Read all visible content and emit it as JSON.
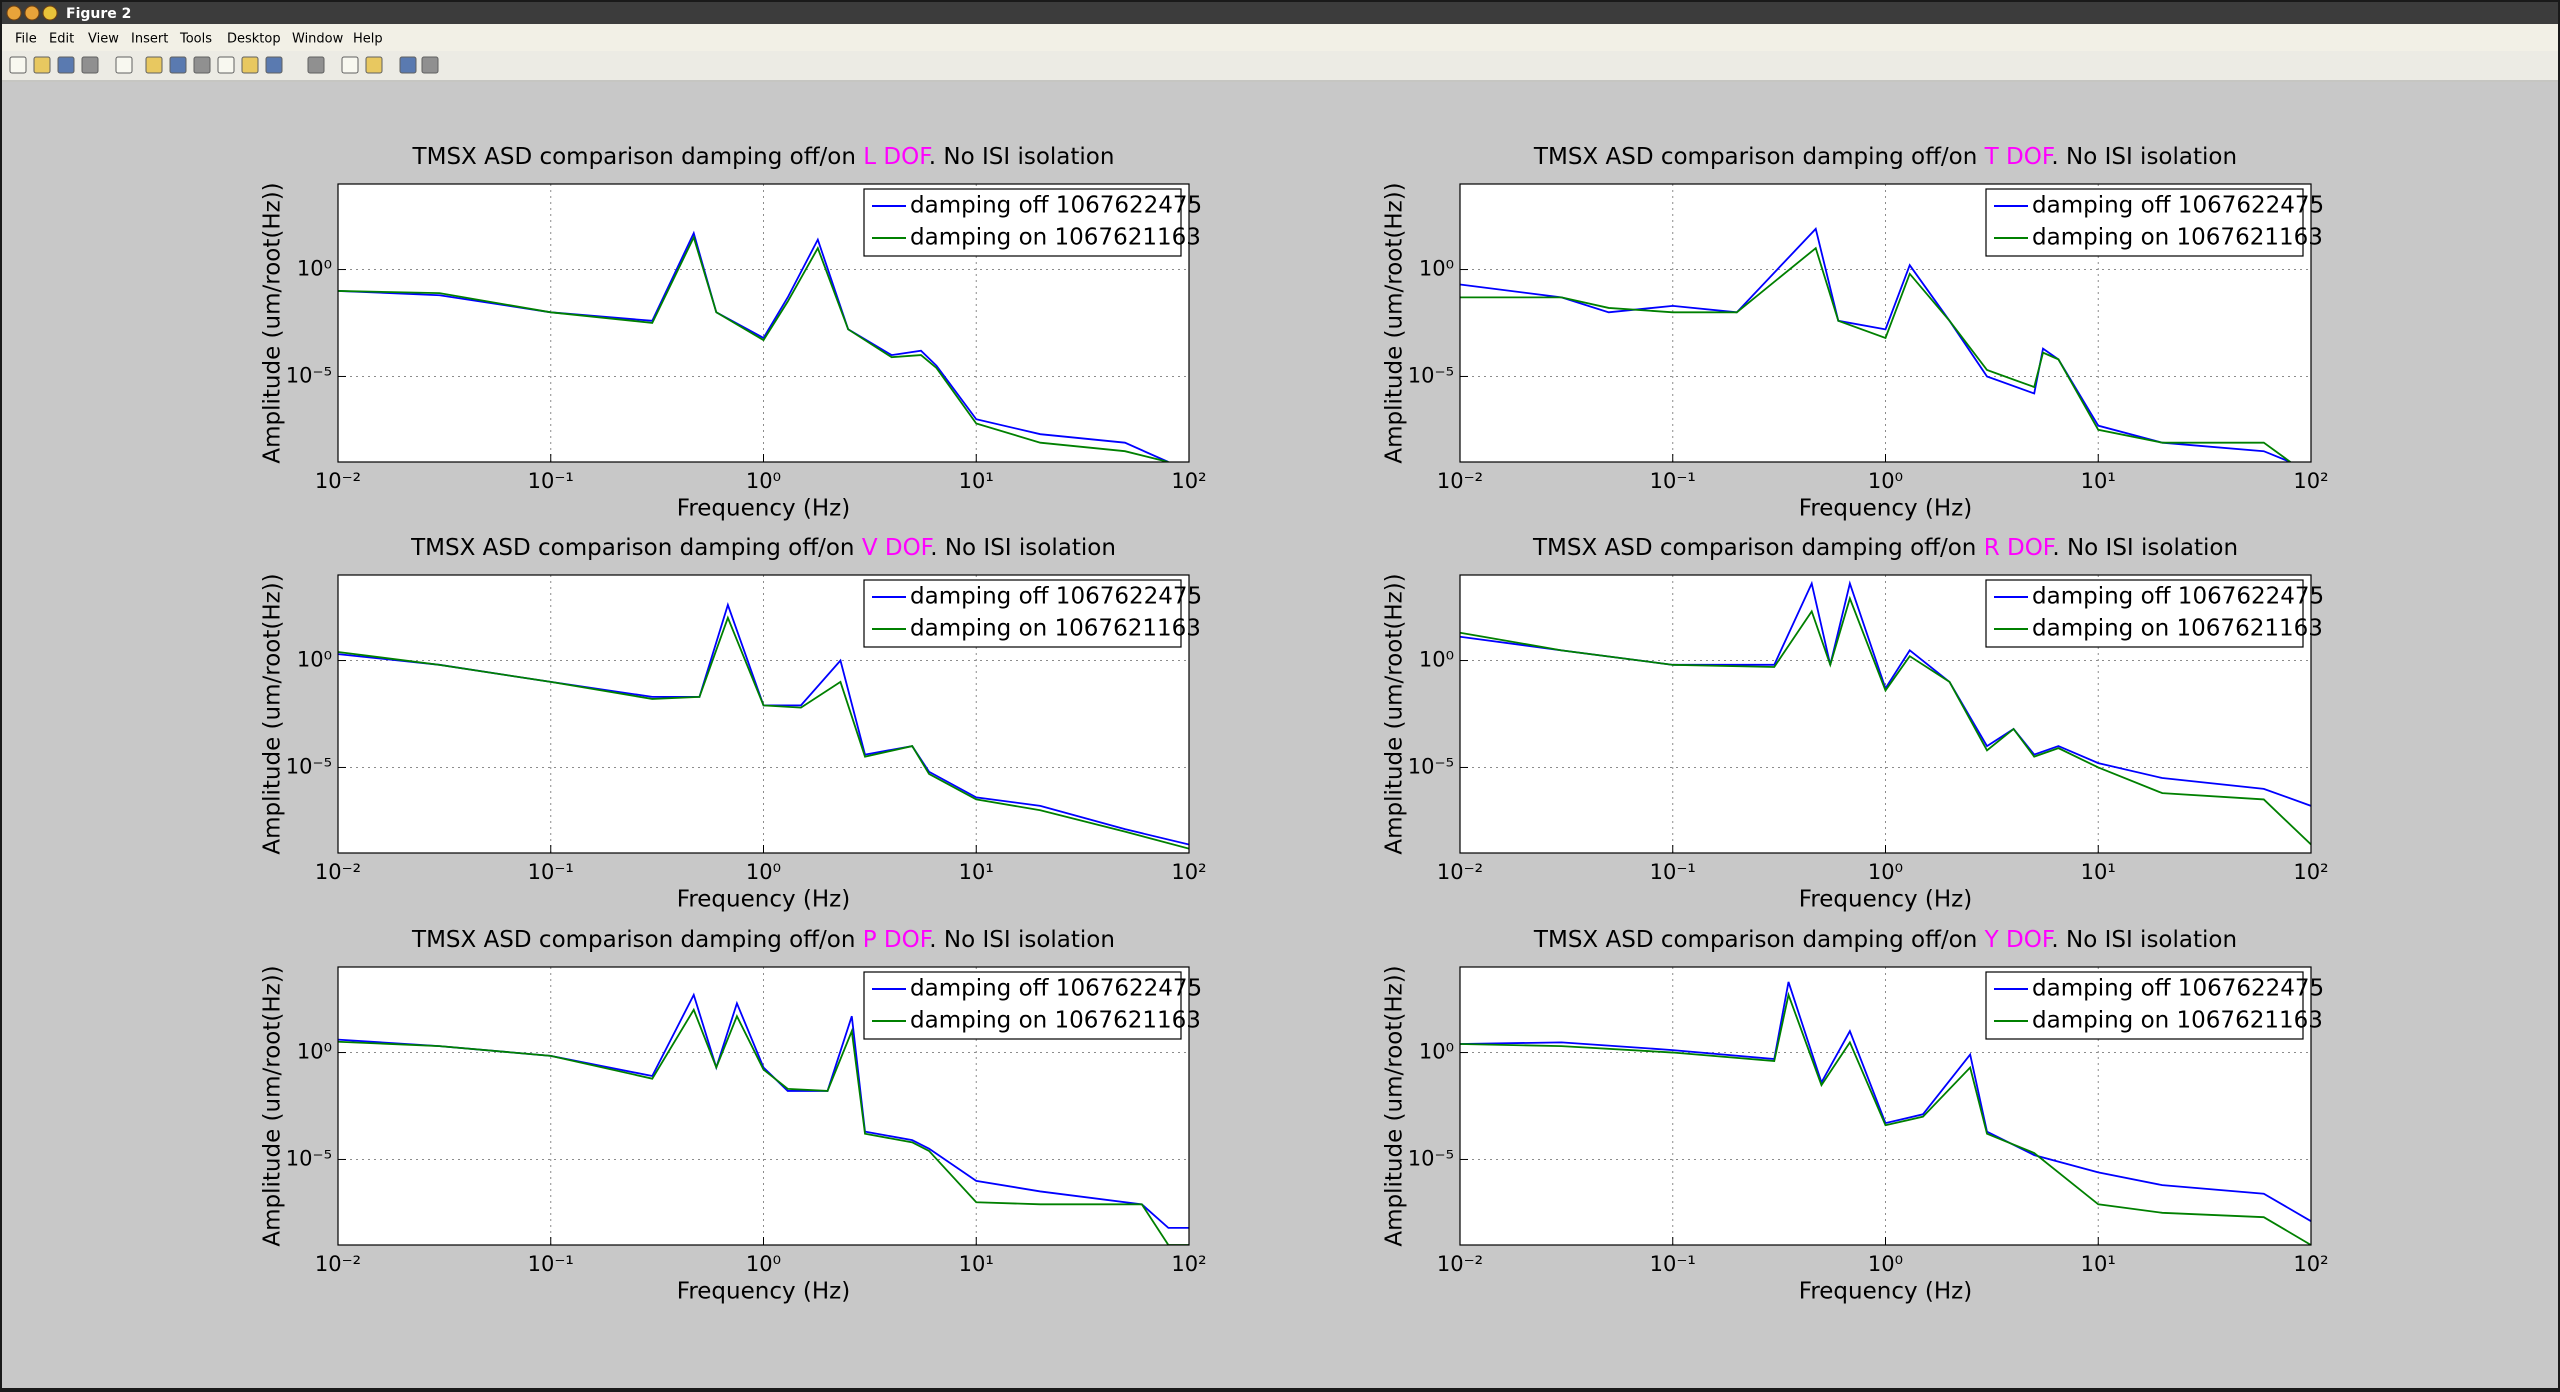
{
  "window": {
    "title": "Figure 2"
  },
  "menu": [
    "File",
    "Edit",
    "View",
    "Insert",
    "Tools",
    "Desktop",
    "Window",
    "Help"
  ],
  "chart_data": [
    {
      "type": "line",
      "xscale": "log",
      "yscale": "log",
      "grid": true,
      "legend": "northeast",
      "title": [
        {
          "text": "TMSX ASD comparison damping off/on ",
          "color": "#000000"
        },
        {
          "text": "L DOF",
          "color": "#ff00ff"
        },
        {
          "text": ". No ISI isolation",
          "color": "#000000"
        }
      ],
      "xlabel": "Frequency (Hz)",
      "ylabel": "Amplitude (um/root(Hz))",
      "xlim": [
        0.01,
        100
      ],
      "ylim": [
        1e-09,
        10000
      ],
      "xticks": [
        {
          "value": 0.01,
          "label": "10⁻²"
        },
        {
          "value": 0.1,
          "label": "10⁻¹"
        },
        {
          "value": 1,
          "label": "10⁰"
        },
        {
          "value": 10,
          "label": "10¹"
        },
        {
          "value": 100,
          "label": "10²"
        }
      ],
      "yticks": [
        {
          "value": 1e-05,
          "label": "10⁻⁵"
        },
        {
          "value": 1,
          "label": "10⁰"
        }
      ],
      "x": [
        0.01,
        0.03,
        0.1,
        0.3,
        0.47,
        0.6,
        1,
        1.3,
        1.8,
        2.5,
        4,
        5.5,
        6.5,
        10,
        20,
        50,
        80
      ],
      "series": [
        {
          "name": "damping off 1067622475",
          "color": "#0000ff",
          "values": [
            0.1,
            0.063,
            0.01,
            0.004,
            50,
            0.01,
            0.00063,
            0.05,
            25,
            0.0016,
            0.0001,
            0.00016,
            3.2e-05,
            1e-07,
            2e-08,
            8e-09,
            1e-09
          ]
        },
        {
          "name": "damping on 1067621163",
          "color": "#008000",
          "values": [
            0.1,
            0.079,
            0.01,
            0.0032,
            32,
            0.01,
            0.0005,
            0.032,
            10,
            0.0016,
            8e-05,
            0.0001,
            2.5e-05,
            6.3e-08,
            8e-09,
            3.2e-09,
            1e-09
          ]
        }
      ]
    },
    {
      "type": "line",
      "xscale": "log",
      "yscale": "log",
      "grid": true,
      "legend": "northeast",
      "title": [
        {
          "text": "TMSX ASD comparison damping off/on ",
          "color": "#000000"
        },
        {
          "text": "T DOF",
          "color": "#ff00ff"
        },
        {
          "text": ". No ISI isolation",
          "color": "#000000"
        }
      ],
      "xlabel": "Frequency (Hz)",
      "ylabel": "Amplitude (um/root(Hz))",
      "xlim": [
        0.01,
        100
      ],
      "ylim": [
        1e-09,
        10000
      ],
      "xticks": [
        {
          "value": 0.01,
          "label": "10⁻²"
        },
        {
          "value": 0.1,
          "label": "10⁻¹"
        },
        {
          "value": 1,
          "label": "10⁰"
        },
        {
          "value": 10,
          "label": "10¹"
        },
        {
          "value": 100,
          "label": "10²"
        }
      ],
      "yticks": [
        {
          "value": 1e-05,
          "label": "10⁻⁵"
        },
        {
          "value": 1,
          "label": "10⁰"
        }
      ],
      "x": [
        0.01,
        0.03,
        0.05,
        0.1,
        0.2,
        0.47,
        0.6,
        1,
        1.3,
        2,
        3,
        5,
        5.5,
        6.5,
        10,
        20,
        60,
        80
      ],
      "series": [
        {
          "name": "damping off 1067622475",
          "color": "#0000ff",
          "values": [
            0.2,
            0.05,
            0.01,
            0.02,
            0.01,
            80,
            0.004,
            0.0016,
            1.6,
            0.004,
            1e-05,
            1.6e-06,
            0.0002,
            6.3e-05,
            5e-08,
            8e-09,
            3.2e-09,
            1e-09
          ]
        },
        {
          "name": "damping on 1067621163",
          "color": "#008000",
          "values": [
            0.05,
            0.05,
            0.016,
            0.01,
            0.01,
            10,
            0.004,
            0.00063,
            0.63,
            0.004,
            2e-05,
            3.2e-06,
            0.00013,
            6.3e-05,
            3.2e-08,
            8e-09,
            8e-09,
            1e-09
          ]
        }
      ]
    },
    {
      "type": "line",
      "xscale": "log",
      "yscale": "log",
      "grid": true,
      "legend": "northeast",
      "title": [
        {
          "text": "TMSX ASD comparison damping off/on ",
          "color": "#000000"
        },
        {
          "text": "V DOF",
          "color": "#ff00ff"
        },
        {
          "text": ". No ISI isolation",
          "color": "#000000"
        }
      ],
      "xlabel": "Frequency (Hz)",
      "ylabel": "Amplitude (um/root(Hz))",
      "xlim": [
        0.01,
        100
      ],
      "ylim": [
        1e-09,
        10000
      ],
      "xticks": [
        {
          "value": 0.01,
          "label": "10⁻²"
        },
        {
          "value": 0.1,
          "label": "10⁻¹"
        },
        {
          "value": 1,
          "label": "10⁰"
        },
        {
          "value": 10,
          "label": "10¹"
        },
        {
          "value": 100,
          "label": "10²"
        }
      ],
      "yticks": [
        {
          "value": 1e-05,
          "label": "10⁻⁵"
        },
        {
          "value": 1,
          "label": "10⁰"
        }
      ],
      "x": [
        0.01,
        0.03,
        0.1,
        0.3,
        0.5,
        0.68,
        1,
        1.5,
        2.3,
        3,
        5,
        6,
        10,
        20,
        50,
        100
      ],
      "series": [
        {
          "name": "damping off 1067622475",
          "color": "#0000ff",
          "values": [
            2,
            0.63,
            0.1,
            0.02,
            0.02,
            400,
            0.008,
            0.008,
            1,
            4e-05,
            0.0001,
            6.3e-06,
            4e-07,
            1.6e-07,
            1.3e-08,
            2.5e-09
          ]
        },
        {
          "name": "damping on 1067621163",
          "color": "#008000",
          "values": [
            2.5,
            0.63,
            0.1,
            0.016,
            0.02,
            100,
            0.008,
            0.0063,
            0.1,
            3.2e-05,
            0.0001,
            5e-06,
            3.2e-07,
            1e-07,
            1e-08,
            1.6e-09
          ]
        }
      ]
    },
    {
      "type": "line",
      "xscale": "log",
      "yscale": "log",
      "grid": true,
      "legend": "northeast",
      "title": [
        {
          "text": "TMSX ASD comparison damping off/on ",
          "color": "#000000"
        },
        {
          "text": "R DOF",
          "color": "#ff00ff"
        },
        {
          "text": ". No ISI isolation",
          "color": "#000000"
        }
      ],
      "xlabel": "Frequency (Hz)",
      "ylabel": "Amplitude (um/root(Hz))",
      "xlim": [
        0.01,
        100
      ],
      "ylim": [
        1e-09,
        10000
      ],
      "xticks": [
        {
          "value": 0.01,
          "label": "10⁻²"
        },
        {
          "value": 0.1,
          "label": "10⁻¹"
        },
        {
          "value": 1,
          "label": "10⁰"
        },
        {
          "value": 10,
          "label": "10¹"
        },
        {
          "value": 100,
          "label": "10²"
        }
      ],
      "yticks": [
        {
          "value": 1e-05,
          "label": "10⁻⁵"
        },
        {
          "value": 1,
          "label": "10⁰"
        }
      ],
      "x": [
        0.01,
        0.03,
        0.1,
        0.3,
        0.45,
        0.55,
        0.68,
        1,
        1.3,
        2,
        3,
        4,
        5,
        6.5,
        10,
        20,
        60,
        100
      ],
      "series": [
        {
          "name": "damping off 1067622475",
          "color": "#0000ff",
          "values": [
            13,
            3,
            0.63,
            0.63,
            4000,
            0.63,
            4000,
            0.05,
            3,
            0.1,
            0.0001,
            0.00063,
            4e-05,
            0.0001,
            1.6e-05,
            3.2e-06,
            1e-06,
            1.6e-07
          ]
        },
        {
          "name": "damping on 1067621163",
          "color": "#008000",
          "values": [
            20,
            3,
            0.63,
            0.5,
            200,
            0.63,
            800,
            0.04,
            1.6,
            0.1,
            6.3e-05,
            0.00063,
            3.2e-05,
            8e-05,
            1e-05,
            6.3e-07,
            3.2e-07,
            2.5e-09
          ]
        }
      ]
    },
    {
      "type": "line",
      "xscale": "log",
      "yscale": "log",
      "grid": true,
      "legend": "northeast",
      "title": [
        {
          "text": "TMSX ASD comparison damping off/on ",
          "color": "#000000"
        },
        {
          "text": "P DOF",
          "color": "#ff00ff"
        },
        {
          "text": ". No ISI isolation",
          "color": "#000000"
        }
      ],
      "xlabel": "Frequency (Hz)",
      "ylabel": "Amplitude (um/root(Hz))",
      "xlim": [
        0.01,
        100
      ],
      "ylim": [
        1e-09,
        10000
      ],
      "xticks": [
        {
          "value": 0.01,
          "label": "10⁻²"
        },
        {
          "value": 0.1,
          "label": "10⁻¹"
        },
        {
          "value": 1,
          "label": "10⁰"
        },
        {
          "value": 10,
          "label": "10¹"
        },
        {
          "value": 100,
          "label": "10²"
        }
      ],
      "yticks": [
        {
          "value": 1e-05,
          "label": "10⁻⁵"
        },
        {
          "value": 1,
          "label": "10⁰"
        }
      ],
      "x": [
        0.01,
        0.03,
        0.1,
        0.3,
        0.47,
        0.6,
        0.75,
        1,
        1.3,
        2,
        2.6,
        3,
        5,
        6,
        10,
        20,
        60,
        80,
        100
      ],
      "series": [
        {
          "name": "damping off 1067622475",
          "color": "#0000ff",
          "values": [
            4,
            2,
            0.7,
            0.08,
            500,
            0.2,
            200,
            0.2,
            0.016,
            0.016,
            50,
            0.0002,
            8e-05,
            3.2e-05,
            1e-06,
            3.2e-07,
            8e-08,
            6.3e-09,
            6.3e-09
          ]
        },
        {
          "name": "damping on 1067621163",
          "color": "#008000",
          "values": [
            3.2,
            2,
            0.7,
            0.06,
            100,
            0.2,
            50,
            0.16,
            0.02,
            0.016,
            10,
            0.00016,
            6.3e-05,
            2.5e-05,
            1e-07,
            8e-08,
            8e-08,
            1e-09,
            1e-09
          ]
        }
      ]
    },
    {
      "type": "line",
      "xscale": "log",
      "yscale": "log",
      "grid": true,
      "legend": "northeast",
      "title": [
        {
          "text": "TMSX ASD comparison damping off/on ",
          "color": "#000000"
        },
        {
          "text": "Y DOF",
          "color": "#ff00ff"
        },
        {
          "text": ". No ISI isolation",
          "color": "#000000"
        }
      ],
      "xlabel": "Frequency (Hz)",
      "ylabel": "Amplitude (um/root(Hz))",
      "xlim": [
        0.01,
        100
      ],
      "ylim": [
        1e-09,
        10000
      ],
      "xticks": [
        {
          "value": 0.01,
          "label": "10⁻²"
        },
        {
          "value": 0.1,
          "label": "10⁻¹"
        },
        {
          "value": 1,
          "label": "10⁰"
        },
        {
          "value": 10,
          "label": "10¹"
        },
        {
          "value": 100,
          "label": "10²"
        }
      ],
      "yticks": [
        {
          "value": 1e-05,
          "label": "10⁻⁵"
        },
        {
          "value": 1,
          "label": "10⁰"
        }
      ],
      "x": [
        0.01,
        0.03,
        0.1,
        0.3,
        0.35,
        0.5,
        0.68,
        1,
        1.5,
        2.5,
        3,
        5,
        10,
        20,
        60,
        100
      ],
      "series": [
        {
          "name": "damping off 1067622475",
          "color": "#0000ff",
          "values": [
            2.5,
            3,
            1.3,
            0.5,
            2000,
            0.04,
            10,
            0.0005,
            0.0013,
            0.8,
            0.0002,
            1.6e-05,
            2.5e-06,
            6.3e-07,
            2.5e-07,
            1.3e-08
          ]
        },
        {
          "name": "damping on 1067621163",
          "color": "#008000",
          "values": [
            2.5,
            2,
            1,
            0.4,
            500,
            0.03,
            3,
            0.0004,
            0.001,
            0.2,
            0.00016,
            2e-05,
            8e-08,
            3.2e-08,
            2e-08,
            1e-09
          ]
        }
      ]
    }
  ]
}
